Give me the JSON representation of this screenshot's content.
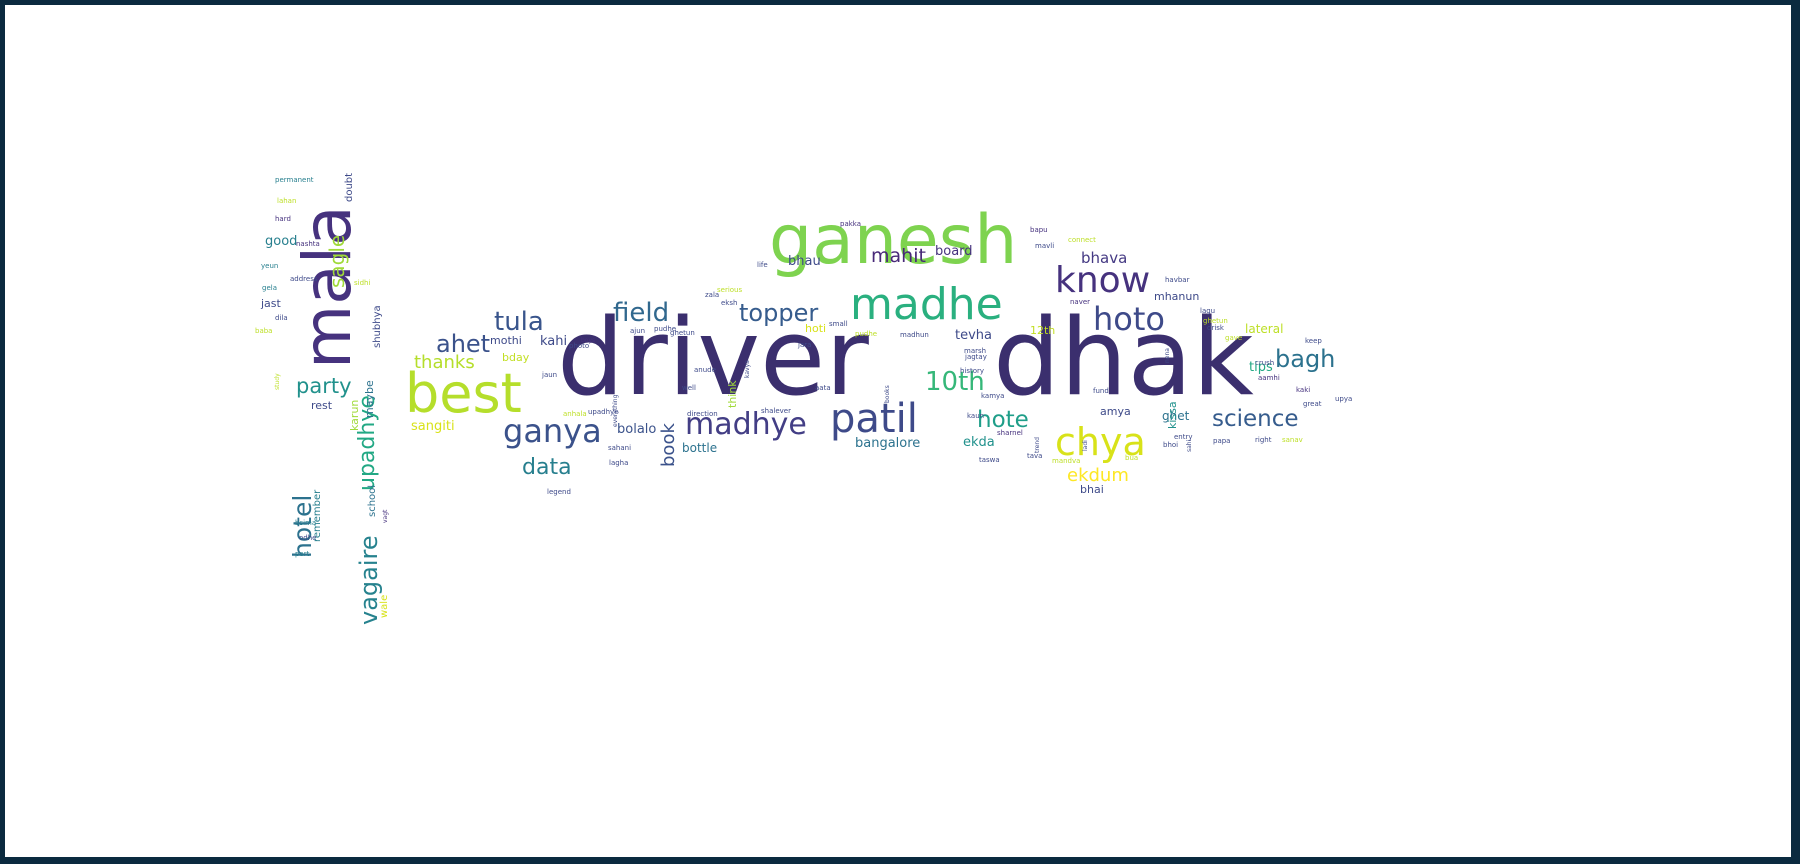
{
  "palette": {
    "frame": "#0b2a3f",
    "canvas": "#ffffff",
    "dark_purple": "#46327e",
    "blue": "#365c8d",
    "teal": "#277f8e",
    "green": "#1fa187",
    "light_green": "#4ac16d",
    "lime": "#a0da39",
    "yellow": "#fde725"
  },
  "words": [
    {
      "text": "driver",
      "color": "#3b2f6e"
    },
    {
      "text": "dhak",
      "color": "#3b2f6e"
    },
    {
      "text": "ganesh",
      "color": "#7ed34f"
    },
    {
      "text": "mala",
      "color": "#46327e"
    },
    {
      "text": "best",
      "color": "#b5de2b"
    },
    {
      "text": "madhe",
      "color": "#2ab07f"
    },
    {
      "text": "patil",
      "color": "#3e4a89"
    },
    {
      "text": "chya",
      "color": "#d8e219"
    },
    {
      "text": "ganya",
      "color": "#3b528b"
    },
    {
      "text": "madhye",
      "color": "#433e85"
    },
    {
      "text": "know",
      "color": "#46327e"
    },
    {
      "text": "hoto",
      "color": "#3e4a89"
    },
    {
      "text": "field",
      "color": "#31688e"
    },
    {
      "text": "topper",
      "color": "#365c8d"
    },
    {
      "text": "science",
      "color": "#365c8d"
    },
    {
      "text": "tula",
      "color": "#39558c"
    },
    {
      "text": "ahet",
      "color": "#3b528b"
    },
    {
      "text": "10th",
      "color": "#35b779"
    },
    {
      "text": "hote",
      "color": "#1f9e89"
    },
    {
      "text": "bagh",
      "color": "#2c728e"
    },
    {
      "text": "data",
      "color": "#277f8e"
    },
    {
      "text": "party",
      "color": "#21918c"
    },
    {
      "text": "thanks",
      "color": "#b5de2b"
    },
    {
      "text": "mahit",
      "color": "#482878"
    },
    {
      "text": "ekdum",
      "color": "#fde725"
    },
    {
      "text": "hotel",
      "color": "#2c728e"
    },
    {
      "text": "vagaire",
      "color": "#26828e"
    },
    {
      "text": "upadhye",
      "color": "#22a884"
    },
    {
      "text": "sagle",
      "color": "#a0da39"
    },
    {
      "text": "book",
      "color": "#3b528b"
    },
    {
      "text": "bhava",
      "color": "#443983"
    },
    {
      "text": "board",
      "color": "#46327e"
    },
    {
      "text": "bhau",
      "color": "#3e4a89"
    },
    {
      "text": "kahi",
      "color": "#3e4a89"
    },
    {
      "text": "bolalo",
      "color": "#3b528b"
    },
    {
      "text": "sangiti",
      "color": "#d8e219"
    },
    {
      "text": "bottle",
      "color": "#2c728e"
    },
    {
      "text": "bangalore",
      "color": "#2c728e"
    },
    {
      "text": "ekda",
      "color": "#21918c"
    },
    {
      "text": "tevha",
      "color": "#3e4a89"
    },
    {
      "text": "lateral",
      "color": "#bddf26"
    },
    {
      "text": "tips",
      "color": "#22a884"
    },
    {
      "text": "ghet",
      "color": "#2c728e"
    },
    {
      "text": "kissa",
      "color": "#21918c"
    },
    {
      "text": "bhai",
      "color": "#3e4a89"
    },
    {
      "text": "mhanun",
      "color": "#3e4a89"
    },
    {
      "text": "12th",
      "color": "#c2df23"
    },
    {
      "text": "hoti",
      "color": "#d8e219"
    },
    {
      "text": "mothi",
      "color": "#3e4a89"
    },
    {
      "text": "bday",
      "color": "#c2df23"
    },
    {
      "text": "think",
      "color": "#a0da39"
    },
    {
      "text": "good",
      "color": "#277f8e"
    },
    {
      "text": "jast",
      "color": "#3e4a89"
    },
    {
      "text": "rest",
      "color": "#3e4a89"
    },
    {
      "text": "maybe",
      "color": "#2c728e"
    },
    {
      "text": "karun",
      "color": "#a0da39"
    },
    {
      "text": "school",
      "color": "#2c728e"
    },
    {
      "text": "remember",
      "color": "#277f8e"
    },
    {
      "text": "shubhya",
      "color": "#3e4a89"
    },
    {
      "text": "doubt",
      "color": "#3e4a89"
    },
    {
      "text": "wale",
      "color": "#d8e219"
    },
    {
      "text": "permanent",
      "color": "#277f8e"
    },
    {
      "text": "lahan",
      "color": "#bddf26"
    },
    {
      "text": "hard",
      "color": "#46327e"
    },
    {
      "text": "nashta",
      "color": "#46327e"
    },
    {
      "text": "yeun",
      "color": "#277f8e"
    },
    {
      "text": "address",
      "color": "#3e4a89"
    },
    {
      "text": "gela",
      "color": "#277f8e"
    },
    {
      "text": "dila",
      "color": "#3e4a89"
    },
    {
      "text": "sidhi",
      "color": "#bddf26"
    },
    {
      "text": "baba",
      "color": "#bddf26"
    },
    {
      "text": "study",
      "color": "#bddf26"
    },
    {
      "text": "bsima",
      "color": "#277f8e"
    },
    {
      "text": "odhe",
      "color": "#3e4a89"
    },
    {
      "text": "part",
      "color": "#277f8e"
    },
    {
      "text": "vagt",
      "color": "#46327e"
    },
    {
      "text": "amya",
      "color": "#3e4a89"
    },
    {
      "text": "legend",
      "color": "#3e4a89"
    },
    {
      "text": "ajun",
      "color": "#3e4a89"
    },
    {
      "text": "pudhe",
      "color": "#3e4a89"
    },
    {
      "text": "photo",
      "color": "#3e4a89"
    },
    {
      "text": "boys",
      "color": "#46327e"
    },
    {
      "text": "jaun",
      "color": "#3e4a89"
    },
    {
      "text": "ghetun",
      "color": "#3e4a89"
    },
    {
      "text": "anude",
      "color": "#3e4a89"
    },
    {
      "text": "well",
      "color": "#3e4a89"
    },
    {
      "text": "everything",
      "color": "#3e4a89"
    },
    {
      "text": "anhala",
      "color": "#bddf26"
    },
    {
      "text": "upadhye",
      "color": "#3e4a89"
    },
    {
      "text": "sahani",
      "color": "#3e4a89"
    },
    {
      "text": "lagha",
      "color": "#3e4a89"
    },
    {
      "text": "direction",
      "color": "#3e4a89"
    },
    {
      "text": "shalever",
      "color": "#3e4a89"
    },
    {
      "text": "pudhe",
      "color": "#bddf26"
    },
    {
      "text": "madhun",
      "color": "#3e4a89"
    },
    {
      "text": "small",
      "color": "#3e4a89"
    },
    {
      "text": "serious",
      "color": "#bddf26"
    },
    {
      "text": "life",
      "color": "#3e4a89"
    },
    {
      "text": "pakka",
      "color": "#46327e"
    },
    {
      "text": "zala",
      "color": "#3e4a89"
    },
    {
      "text": "eksh",
      "color": "#3e4a89"
    },
    {
      "text": "kavya",
      "color": "#3e4a89"
    },
    {
      "text": "jara",
      "color": "#3e4a89"
    },
    {
      "text": "aata",
      "color": "#3e4a89"
    },
    {
      "text": "books",
      "color": "#3e4a89"
    },
    {
      "text": "jagtay",
      "color": "#3e4a89"
    },
    {
      "text": "marsh",
      "color": "#3e4a89"
    },
    {
      "text": "history",
      "color": "#3e4a89"
    },
    {
      "text": "kamya",
      "color": "#3e4a89"
    },
    {
      "text": "kaun",
      "color": "#3e4a89"
    },
    {
      "text": "taswa",
      "color": "#3e4a89"
    },
    {
      "text": "mandva",
      "color": "#bddf26"
    },
    {
      "text": "havbar",
      "color": "#3e4a89"
    },
    {
      "text": "naver",
      "color": "#46327e"
    },
    {
      "text": "bapu",
      "color": "#46327e"
    },
    {
      "text": "mavli",
      "color": "#3e4a89"
    },
    {
      "text": "connect",
      "color": "#bddf26"
    },
    {
      "text": "sharnel",
      "color": "#46327e"
    },
    {
      "text": "trend",
      "color": "#3e4a89"
    },
    {
      "text": "tava",
      "color": "#3e4a89"
    },
    {
      "text": "lagu",
      "color": "#3e4a89"
    },
    {
      "text": "ghetun",
      "color": "#bddf26"
    },
    {
      "text": "drisk",
      "color": "#3e4a89"
    },
    {
      "text": "gave",
      "color": "#bddf26"
    },
    {
      "text": "keep",
      "color": "#3e4a89"
    },
    {
      "text": "crush",
      "color": "#3e4a89"
    },
    {
      "text": "aamhi",
      "color": "#46327e"
    },
    {
      "text": "kaki",
      "color": "#46327e"
    },
    {
      "text": "great",
      "color": "#3e4a89"
    },
    {
      "text": "upya",
      "color": "#3e4a89"
    },
    {
      "text": "right",
      "color": "#3e4a89"
    },
    {
      "text": "sanav",
      "color": "#bddf26"
    },
    {
      "text": "papa",
      "color": "#3e4a89"
    },
    {
      "text": "entry",
      "color": "#3e4a89"
    },
    {
      "text": "nena",
      "color": "#3e4a89"
    },
    {
      "text": "fund",
      "color": "#3e4a89"
    },
    {
      "text": "ladi",
      "color": "#3e4a89"
    },
    {
      "text": "bhoi",
      "color": "#3e4a89"
    },
    {
      "text": "sahi",
      "color": "#3e4a89"
    },
    {
      "text": "bua",
      "color": "#bddf26"
    },
    {
      "text": "dadjya",
      "color": "#3e4a89"
    },
    {
      "text": "amadhya",
      "color": "#46327e"
    }
  ]
}
